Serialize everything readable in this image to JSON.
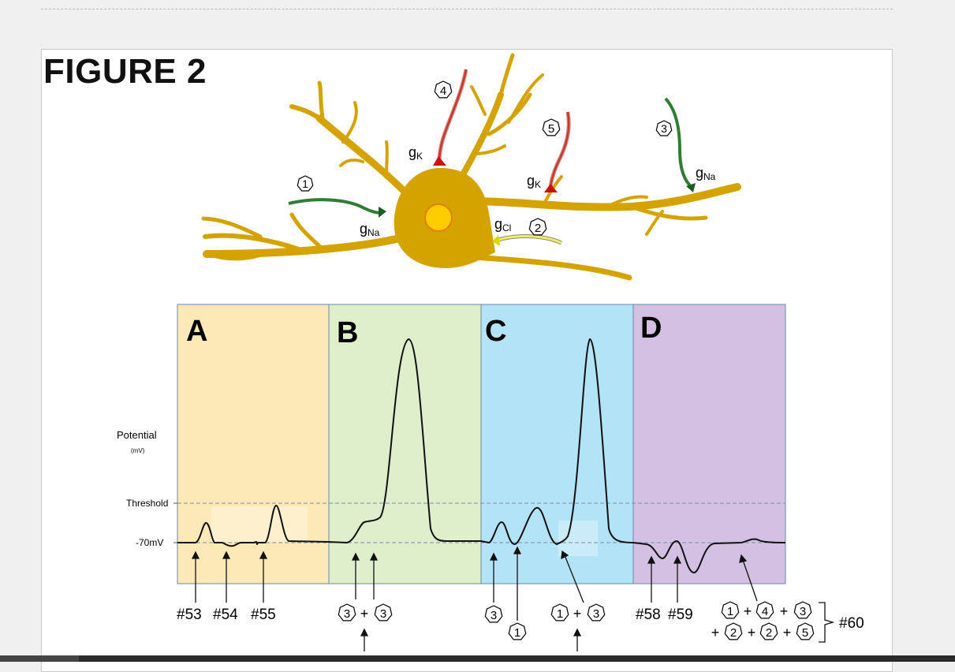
{
  "figure": {
    "title": "FIGURE 2",
    "neuron": {
      "synapses": [
        {
          "number": "1",
          "conductance": "g",
          "ion": "Na",
          "color": "#2e7d32"
        },
        {
          "number": "2",
          "conductance": "g",
          "ion": "Cl",
          "color": "#d4d400"
        },
        {
          "number": "3",
          "conductance": "g",
          "ion": "Na",
          "color": "#2e7d32"
        },
        {
          "number": "4",
          "conductance": "g",
          "ion": "K",
          "color": "#cc1111"
        },
        {
          "number": "5",
          "conductance": "g",
          "ion": "K",
          "color": "#cc1111"
        }
      ],
      "body_color": "#d4a300",
      "nucleus_color": "#ffcc00"
    },
    "graph": {
      "ylabel": "Potential",
      "yunit": "(mV)",
      "threshold_label": "Threshold",
      "rest_label": "-70mV",
      "panels": [
        {
          "letter": "A",
          "color": "#fde9b8"
        },
        {
          "letter": "B",
          "color": "#dfeecb"
        },
        {
          "letter": "C",
          "color": "#b3e3f6"
        },
        {
          "letter": "D",
          "color": "#d4c0e2"
        }
      ]
    },
    "annotations": {
      "a": [
        "#53",
        "#54",
        "#55"
      ],
      "b": {
        "left": "3",
        "plus": "+",
        "right": "3"
      },
      "c": {
        "single": "3",
        "below": "1",
        "left": "1",
        "plus": "+",
        "right": "3"
      },
      "d": {
        "labels": [
          "#58",
          "#59"
        ],
        "line1": [
          "1",
          "4",
          "3"
        ],
        "line2": [
          "2",
          "2",
          "5"
        ],
        "plus": "+",
        "result": "#60"
      }
    }
  }
}
